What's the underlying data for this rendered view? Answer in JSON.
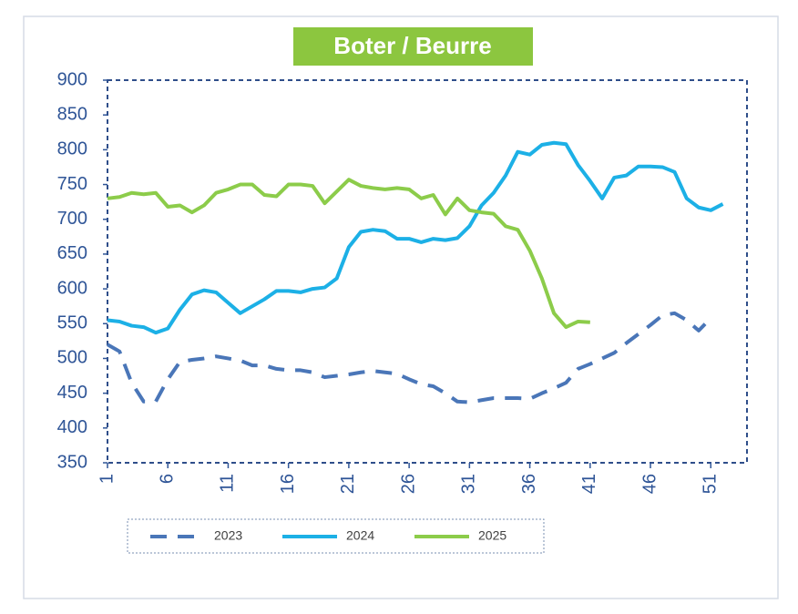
{
  "chart_data": {
    "type": "line",
    "title": "Boter / Beurre",
    "x": [
      1,
      2,
      3,
      4,
      5,
      6,
      7,
      8,
      9,
      10,
      11,
      12,
      13,
      14,
      15,
      16,
      17,
      18,
      19,
      20,
      21,
      22,
      23,
      24,
      25,
      26,
      27,
      28,
      29,
      30,
      31,
      32,
      33,
      34,
      35,
      36,
      37,
      38,
      39,
      40,
      41,
      42,
      43,
      44,
      45,
      46,
      47,
      48,
      49,
      50,
      51,
      52
    ],
    "xlim": [
      1,
      54
    ],
    "xticks": [
      1,
      6,
      11,
      16,
      21,
      26,
      31,
      36,
      41,
      46,
      51
    ],
    "ylim": [
      350,
      900
    ],
    "yticks": [
      350,
      400,
      450,
      500,
      550,
      600,
      650,
      700,
      750,
      800,
      850,
      900
    ],
    "grid": false,
    "legend": "bottom",
    "series": [
      {
        "name": "2023",
        "color": "#4a76b8",
        "dash": true,
        "values": [
          520,
          510,
          465,
          438,
          438,
          470,
          495,
          498,
          500,
          503,
          500,
          497,
          490,
          490,
          485,
          483,
          483,
          480,
          473,
          475,
          477,
          480,
          482,
          480,
          478,
          470,
          463,
          460,
          450,
          438,
          437,
          440,
          443,
          443,
          443,
          442,
          450,
          457,
          465,
          485,
          492,
          500,
          508,
          522,
          535,
          548,
          562,
          565,
          555,
          540,
          558,
          null
        ]
      },
      {
        "name": "2024",
        "color": "#1cb0e6",
        "dash": false,
        "values": [
          555,
          553,
          547,
          545,
          537,
          543,
          570,
          592,
          598,
          595,
          580,
          565,
          575,
          585,
          597,
          597,
          595,
          600,
          602,
          615,
          660,
          682,
          685,
          683,
          672,
          672,
          667,
          672,
          670,
          673,
          690,
          720,
          738,
          763,
          797,
          793,
          807,
          810,
          808,
          778,
          755,
          730,
          760,
          763,
          776,
          776,
          775,
          768,
          730,
          717,
          713,
          722
        ]
      },
      {
        "name": "2025",
        "color": "#8ccc4a",
        "dash": false,
        "values": [
          730,
          732,
          738,
          736,
          738,
          718,
          720,
          710,
          720,
          738,
          743,
          750,
          750,
          735,
          733,
          750,
          750,
          748,
          723,
          740,
          757,
          748,
          745,
          743,
          745,
          743,
          730,
          735,
          707,
          730,
          713,
          710,
          708,
          690,
          685,
          655,
          615,
          565,
          545,
          553,
          552,
          null,
          null,
          null,
          null,
          null,
          null,
          null,
          null,
          null,
          null,
          null
        ]
      }
    ]
  }
}
